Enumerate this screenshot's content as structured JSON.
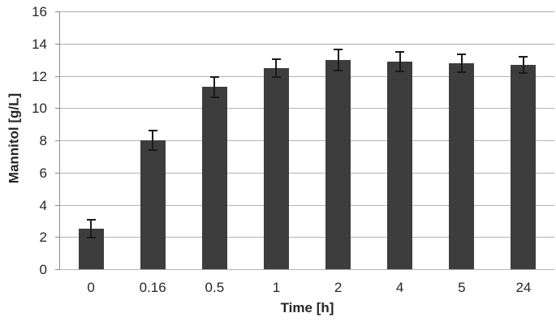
{
  "chart_data": {
    "type": "bar",
    "title": "",
    "xlabel": "Time [h]",
    "ylabel": "Mannitol [g/L]",
    "categories": [
      "0",
      "0.16",
      "0.5",
      "1",
      "2",
      "4",
      "5",
      "24"
    ],
    "series": [
      {
        "name": "Mannitol",
        "values": [
          2.5,
          8.0,
          11.3,
          12.5,
          13.0,
          12.9,
          12.8,
          12.7
        ],
        "errors": [
          0.6,
          0.65,
          0.7,
          0.6,
          0.7,
          0.65,
          0.6,
          0.55
        ]
      }
    ],
    "ylim": [
      0,
      16
    ],
    "ytick_step": 2,
    "yticks": [
      "0",
      "2",
      "4",
      "6",
      "8",
      "10",
      "12",
      "14",
      "16"
    ],
    "grid": true,
    "legend_position": "none",
    "colors": {
      "bar": "#3d3d3d",
      "error_bar": "#1a1a1a",
      "gridline": "#b3b3b3",
      "axis": "#8c8c8c",
      "text": "#262626",
      "background": "#ffffff"
    }
  }
}
